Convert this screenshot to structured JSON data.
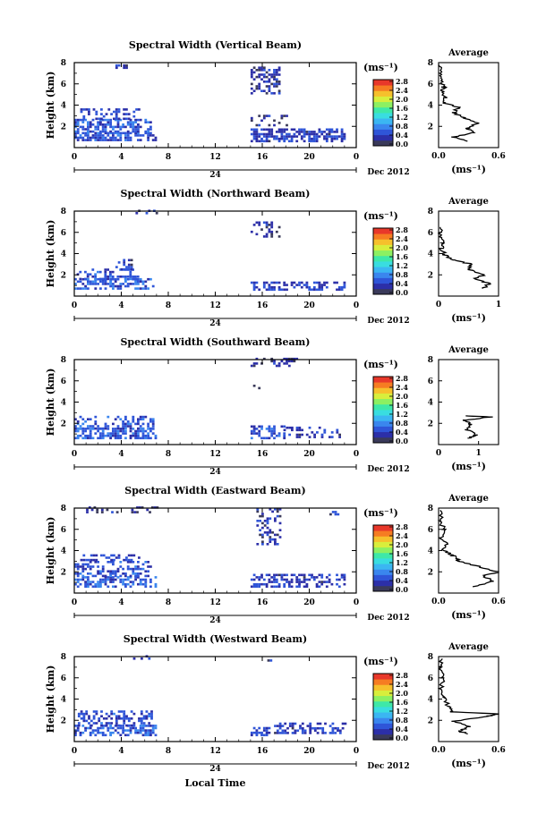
{
  "common": {
    "ylabel": "Height (km)",
    "y_ticks": [
      "2",
      "4",
      "6",
      "8"
    ],
    "x_ticks": [
      "0",
      "4",
      "8",
      "12",
      "16",
      "20",
      "0"
    ],
    "day_label": "24",
    "date_label": "Dec 2012",
    "unit_label": "(ms⁻¹)",
    "colorbar_ticks": [
      "0.0",
      "0.4",
      "0.8",
      "1.2",
      "1.6",
      "2.0",
      "2.4",
      "2.8"
    ],
    "avg_title": "Average",
    "avg_ylim": [
      0,
      8
    ],
    "xlabel": "Local Time",
    "colormap": [
      "#3a3a5a",
      "#2c2fa8",
      "#2f55d8",
      "#3a86ee",
      "#3bb6f2",
      "#39dde0",
      "#3ee8a8",
      "#8cf062",
      "#d8ee3c",
      "#f6c02c",
      "#f67c22",
      "#e8382a"
    ]
  },
  "chart_data": [
    {
      "type": "heatmap",
      "title": "Spectral Width (Vertical Beam)",
      "cb_ticks": [
        "0.0",
        "0.4",
        "0.8",
        "1.2",
        "1.6",
        "2.0",
        "2.4",
        "2.8"
      ],
      "avg_xticks": [
        "0.0",
        "0.6"
      ],
      "avg_xlim": [
        0,
        0.6
      ],
      "patches": [
        {
          "x": [
            0,
            7
          ],
          "y": [
            0.6,
            1.4
          ],
          "v": 0.55,
          "d": 0.7
        },
        {
          "x": [
            0,
            6.5
          ],
          "y": [
            1.4,
            2.6
          ],
          "v": 0.6,
          "d": 0.55
        },
        {
          "x": [
            0.5,
            5.5
          ],
          "y": [
            2.6,
            3.6
          ],
          "v": 0.45,
          "d": 0.35
        },
        {
          "x": [
            3.5,
            4.5
          ],
          "y": [
            7.4,
            7.8
          ],
          "v": 0.3,
          "d": 0.6
        },
        {
          "x": [
            15,
            17.5
          ],
          "y": [
            5,
            7.5
          ],
          "v": 0.35,
          "d": 0.45
        },
        {
          "x": [
            15,
            18
          ],
          "y": [
            2,
            3
          ],
          "v": 0.3,
          "d": 0.25
        },
        {
          "x": [
            15,
            23
          ],
          "y": [
            0.5,
            1.6
          ],
          "v": 0.45,
          "d": 0.55
        }
      ],
      "avg_profile": [
        [
          0.3,
          0.6
        ],
        [
          0.15,
          1.0
        ],
        [
          0.35,
          1.4
        ],
        [
          0.28,
          1.8
        ],
        [
          0.4,
          2.3
        ],
        [
          0.25,
          2.8
        ],
        [
          0.15,
          3.3
        ],
        [
          0.2,
          3.8
        ],
        [
          0.05,
          4.2
        ],
        [
          0.07,
          4.7
        ],
        [
          0.03,
          5.2
        ],
        [
          0.05,
          5.7
        ],
        [
          0.02,
          6.3
        ],
        [
          0.03,
          7.0
        ],
        [
          0.01,
          7.8
        ]
      ]
    },
    {
      "type": "heatmap",
      "title": "Spectral Width (Northward Beam)",
      "cb_ticks": [
        "0.0",
        "0.4",
        "0.8",
        "1.2",
        "1.6",
        "2.0",
        "2.4",
        "2.8"
      ],
      "avg_xticks": [
        "0",
        "1"
      ],
      "avg_xlim": [
        0,
        1
      ],
      "patches": [
        {
          "x": [
            0,
            6.8
          ],
          "y": [
            0.6,
            1.5
          ],
          "v": 0.6,
          "d": 0.55
        },
        {
          "x": [
            0.2,
            5.5
          ],
          "y": [
            1.5,
            2.4
          ],
          "v": 0.55,
          "d": 0.4
        },
        {
          "x": [
            3.5,
            4.8
          ],
          "y": [
            2.4,
            3.3
          ],
          "v": 0.4,
          "d": 0.45
        },
        {
          "x": [
            5,
            7
          ],
          "y": [
            7.7,
            8
          ],
          "v": 0.3,
          "d": 0.3
        },
        {
          "x": [
            15,
            17.5
          ],
          "y": [
            5.5,
            7
          ],
          "v": 0.3,
          "d": 0.35
        },
        {
          "x": [
            15,
            23
          ],
          "y": [
            0.5,
            1.3
          ],
          "v": 0.45,
          "d": 0.5
        }
      ],
      "avg_profile": [
        [
          0.75,
          0.7
        ],
        [
          0.85,
          1.2
        ],
        [
          0.6,
          1.6
        ],
        [
          0.75,
          2.0
        ],
        [
          0.5,
          2.5
        ],
        [
          0.55,
          3.0
        ],
        [
          0.25,
          3.4
        ],
        [
          0.1,
          3.9
        ],
        [
          0.05,
          4.5
        ],
        [
          0.08,
          5.0
        ],
        [
          0.02,
          5.6
        ],
        [
          0.03,
          6.5
        ]
      ]
    },
    {
      "type": "heatmap",
      "title": "Spectral Width (Southward Beam)",
      "cb_ticks": [
        "0.0",
        "0.4",
        "0.8",
        "1.2",
        "1.6",
        "2.0",
        "2.4",
        "2.8"
      ],
      "avg_xticks": [
        "0",
        "1"
      ],
      "avg_xlim": [
        0,
        1.5
      ],
      "patches": [
        {
          "x": [
            0,
            7
          ],
          "y": [
            0.5,
            1.4
          ],
          "v": 0.6,
          "d": 0.6
        },
        {
          "x": [
            0,
            6.8
          ],
          "y": [
            1.4,
            2.6
          ],
          "v": 0.55,
          "d": 0.45
        },
        {
          "x": [
            15,
            17.8
          ],
          "y": [
            0.5,
            1.8
          ],
          "v": 0.55,
          "d": 0.55
        },
        {
          "x": [
            17.8,
            22.5
          ],
          "y": [
            0.6,
            1.5
          ],
          "v": 0.45,
          "d": 0.35
        },
        {
          "x": [
            15,
            19
          ],
          "y": [
            7.3,
            8
          ],
          "v": 0.3,
          "d": 0.3
        },
        {
          "x": [
            15,
            16
          ],
          "y": [
            5.2,
            5.6
          ],
          "v": 0.3,
          "d": 0.4
        }
      ],
      "avg_profile": [
        [
          0.75,
          0.6
        ],
        [
          0.95,
          0.9
        ],
        [
          0.7,
          1.4
        ],
        [
          0.8,
          1.9
        ],
        [
          0.65,
          2.3
        ],
        [
          1.3,
          2.6
        ],
        [
          0.7,
          2.7
        ]
      ]
    },
    {
      "type": "heatmap",
      "title": "Spectral Width (Eastward Beam)",
      "cb_ticks": [
        "0.0",
        "0.4",
        "0.8",
        "1.2",
        "1.6",
        "2.0",
        "2.4",
        "2.8"
      ],
      "avg_xticks": [
        "0.0",
        "0.6"
      ],
      "avg_xlim": [
        0,
        0.6
      ],
      "patches": [
        {
          "x": [
            0,
            7
          ],
          "y": [
            0.5,
            1.5
          ],
          "v": 0.6,
          "d": 0.6
        },
        {
          "x": [
            0,
            6.5
          ],
          "y": [
            1.5,
            3.0
          ],
          "v": 0.55,
          "d": 0.45
        },
        {
          "x": [
            0.5,
            5.5
          ],
          "y": [
            3.0,
            3.6
          ],
          "v": 0.45,
          "d": 0.35
        },
        {
          "x": [
            1,
            7
          ],
          "y": [
            7.5,
            8
          ],
          "v": 0.3,
          "d": 0.3
        },
        {
          "x": [
            15.5,
            17.5
          ],
          "y": [
            4.5,
            7.8
          ],
          "v": 0.35,
          "d": 0.4
        },
        {
          "x": [
            15,
            23
          ],
          "y": [
            0.5,
            1.8
          ],
          "v": 0.45,
          "d": 0.5
        },
        {
          "x": [
            21.5,
            22.5
          ],
          "y": [
            7.3,
            7.8
          ],
          "v": 0.3,
          "d": 0.5
        }
      ],
      "avg_profile": [
        [
          0.35,
          0.6
        ],
        [
          0.55,
          1.1
        ],
        [
          0.45,
          1.6
        ],
        [
          0.6,
          2.0
        ],
        [
          0.4,
          2.5
        ],
        [
          0.2,
          3.0
        ],
        [
          0.15,
          3.5
        ],
        [
          0.05,
          4.0
        ],
        [
          0.08,
          4.6
        ],
        [
          0.03,
          5.2
        ],
        [
          0.05,
          6.0
        ],
        [
          0.02,
          6.8
        ],
        [
          0.03,
          7.8
        ]
      ]
    },
    {
      "type": "heatmap",
      "title": "Spectral Width (Westward Beam)",
      "cb_ticks": [
        "0.0",
        "0.4",
        "0.8",
        "1.2",
        "1.6",
        "2.0",
        "2.4",
        "2.8"
      ],
      "avg_xticks": [
        "0.0",
        "0.6"
      ],
      "avg_xlim": [
        0,
        0.6
      ],
      "patches": [
        {
          "x": [
            0,
            7
          ],
          "y": [
            0.5,
            1.4
          ],
          "v": 0.6,
          "d": 0.6
        },
        {
          "x": [
            0.3,
            6.5
          ],
          "y": [
            1.4,
            2.8
          ],
          "v": 0.5,
          "d": 0.45
        },
        {
          "x": [
            5,
            6.5
          ],
          "y": [
            7.7,
            8
          ],
          "v": 0.3,
          "d": 0.4
        },
        {
          "x": [
            15,
            16.5
          ],
          "y": [
            0.5,
            1.2
          ],
          "v": 0.45,
          "d": 0.5
        },
        {
          "x": [
            17,
            23
          ],
          "y": [
            0.7,
            1.6
          ],
          "v": 0.45,
          "d": 0.45
        },
        {
          "x": [
            16,
            17
          ],
          "y": [
            7.3,
            7.7
          ],
          "v": 0.3,
          "d": 0.3
        }
      ],
      "avg_profile": [
        [
          0.3,
          0.7
        ],
        [
          0.2,
          1.0
        ],
        [
          0.3,
          1.4
        ],
        [
          0.15,
          1.9
        ],
        [
          0.5,
          2.4
        ],
        [
          0.6,
          2.6
        ],
        [
          0.12,
          2.8
        ],
        [
          0.1,
          3.3
        ],
        [
          0.05,
          4.2
        ],
        [
          0.03,
          5.0
        ],
        [
          0.04,
          6.0
        ],
        [
          0.02,
          7.0
        ],
        [
          0.03,
          7.8
        ]
      ]
    }
  ]
}
